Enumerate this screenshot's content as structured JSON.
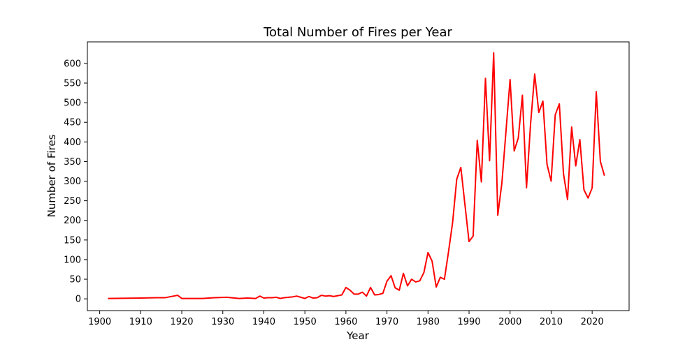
{
  "chart_data": {
    "type": "line",
    "title": "Total Number of Fires per Year",
    "xlabel": "Year",
    "ylabel": "Number of Fires",
    "xlim": [
      1897,
      2029
    ],
    "ylim": [
      -30,
      655
    ],
    "xticks": [
      1900,
      1910,
      1920,
      1930,
      1940,
      1950,
      1960,
      1970,
      1980,
      1990,
      2000,
      2010,
      2020
    ],
    "yticks": [
      0,
      50,
      100,
      150,
      200,
      250,
      300,
      350,
      400,
      450,
      500,
      550,
      600
    ],
    "grid": false,
    "legend": "none",
    "line_color": "#ff0000",
    "series": [
      {
        "x": [
          1902,
          1910,
          1914,
          1916,
          1918,
          1919,
          1920,
          1925,
          1928,
          1931,
          1932,
          1934,
          1936,
          1938,
          1939,
          1940,
          1941,
          1942,
          1943,
          1944,
          1945,
          1946,
          1947,
          1948,
          1949,
          1950,
          1951,
          1952,
          1953,
          1954,
          1955,
          1956,
          1957,
          1958,
          1959,
          1960,
          1961,
          1962,
          1963,
          1964,
          1965,
          1966,
          1967,
          1968,
          1969,
          1970,
          1971,
          1972,
          1973,
          1974,
          1975,
          1976,
          1977,
          1978,
          1979,
          1980,
          1981,
          1982,
          1983,
          1984,
          1985,
          1986,
          1987,
          1988,
          1989,
          1990,
          1991,
          1992,
          1993,
          1994,
          1995,
          1996,
          1997,
          1998,
          1999,
          2000,
          2001,
          2002,
          2003,
          2004,
          2005,
          2006,
          2007,
          2008,
          2009,
          2010,
          2011,
          2012,
          2013,
          2014,
          2015,
          2016,
          2017,
          2018,
          2019,
          2020,
          2021,
          2022,
          2023
        ],
        "y": [
          1,
          2,
          3,
          3,
          7,
          9,
          1,
          1,
          3,
          4,
          3,
          1,
          2,
          1,
          7,
          2,
          3,
          3,
          4,
          1,
          3,
          4,
          5,
          7,
          4,
          1,
          6,
          2,
          3,
          9,
          7,
          8,
          6,
          8,
          10,
          29,
          22,
          12,
          12,
          17,
          7,
          29,
          10,
          11,
          14,
          45,
          59,
          28,
          22,
          65,
          33,
          50,
          43,
          46,
          67,
          118,
          96,
          30,
          55,
          50,
          120,
          195,
          305,
          335,
          240,
          146,
          160,
          404,
          298,
          562,
          352,
          627,
          213,
          295,
          427,
          559,
          377,
          410,
          519,
          283,
          447,
          573,
          475,
          504,
          343,
          300,
          469,
          497,
          320,
          253,
          438,
          339,
          406,
          278,
          257,
          283,
          528,
          350,
          314
        ]
      }
    ]
  }
}
